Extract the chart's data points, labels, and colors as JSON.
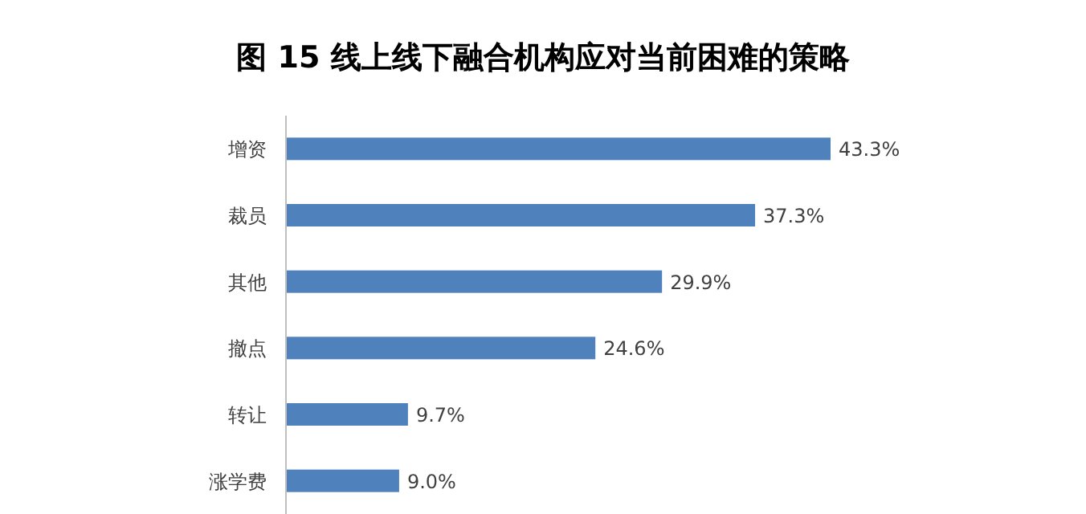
{
  "chart_data": {
    "type": "bar",
    "orientation": "horizontal",
    "title": "图 15  线上线下融合机构应对当前困难的策略",
    "categories": [
      "增资",
      "裁员",
      "其他",
      "撤点",
      "转让",
      "涨学费"
    ],
    "values": [
      43.3,
      37.3,
      29.9,
      24.6,
      9.7,
      9.0
    ],
    "value_labels": [
      "43.3%",
      "37.3%",
      "29.9%",
      "24.6%",
      "9.7%",
      "9.0%"
    ],
    "color": "#4f81bd"
  }
}
